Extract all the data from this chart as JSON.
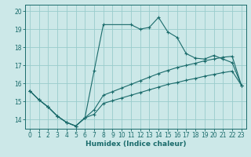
{
  "xlabel": "Humidex (Indice chaleur)",
  "bg_color": "#cce8e8",
  "grid_color": "#99cccc",
  "line_color": "#1a6b6b",
  "xlim": [
    -0.5,
    23.5
  ],
  "ylim": [
    13.5,
    20.35
  ],
  "xticks": [
    0,
    1,
    2,
    3,
    4,
    5,
    6,
    7,
    8,
    9,
    10,
    11,
    12,
    13,
    14,
    15,
    16,
    17,
    18,
    19,
    20,
    21,
    22,
    23
  ],
  "yticks": [
    14,
    15,
    16,
    17,
    18,
    19,
    20
  ],
  "curve1_x": [
    0,
    1,
    2,
    3,
    4,
    5,
    6,
    7,
    8,
    11,
    12,
    13,
    14,
    15,
    16,
    17,
    18,
    19,
    20,
    21,
    22,
    23
  ],
  "curve1_y": [
    15.6,
    15.1,
    14.7,
    14.2,
    13.85,
    13.65,
    14.1,
    16.7,
    19.25,
    19.25,
    19.0,
    19.1,
    19.65,
    18.85,
    18.55,
    17.65,
    17.4,
    17.35,
    17.55,
    17.35,
    17.15,
    15.9
  ],
  "curve2_x": [
    0,
    1,
    2,
    3,
    4,
    5,
    6,
    7,
    8,
    9,
    10,
    11,
    12,
    13,
    14,
    15,
    16,
    17,
    18,
    19,
    20,
    21,
    22,
    23
  ],
  "curve2_y": [
    15.6,
    15.1,
    14.7,
    14.2,
    13.85,
    13.65,
    14.1,
    14.55,
    15.35,
    15.55,
    15.75,
    15.95,
    16.15,
    16.35,
    16.55,
    16.72,
    16.88,
    17.0,
    17.12,
    17.25,
    17.35,
    17.45,
    17.5,
    15.9
  ],
  "curve3_x": [
    0,
    1,
    2,
    3,
    4,
    5,
    6,
    7,
    8,
    9,
    10,
    11,
    12,
    13,
    14,
    15,
    16,
    17,
    18,
    19,
    20,
    21,
    22,
    23
  ],
  "curve3_y": [
    15.6,
    15.1,
    14.7,
    14.2,
    13.85,
    13.65,
    14.1,
    14.3,
    14.9,
    15.05,
    15.2,
    15.35,
    15.5,
    15.65,
    15.8,
    15.95,
    16.05,
    16.18,
    16.28,
    16.4,
    16.5,
    16.6,
    16.68,
    15.9
  ]
}
